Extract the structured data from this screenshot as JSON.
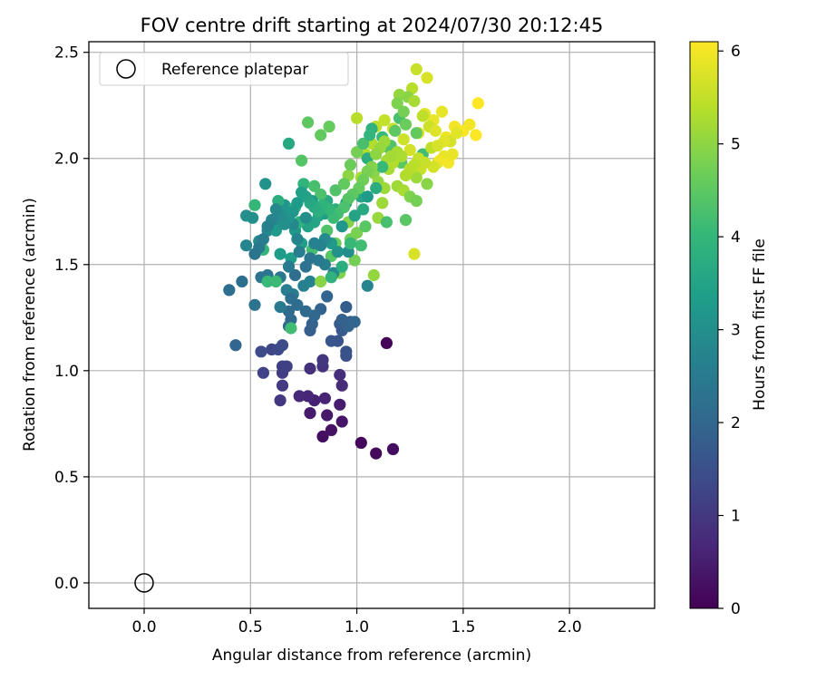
{
  "chart_data": {
    "type": "scatter",
    "title": "FOV centre drift starting at 2024/07/30 20:12:45",
    "xlabel": "Angular distance from reference (arcmin)",
    "ylabel": "Rotation from reference (arcmin)",
    "xlim": [
      -0.26,
      2.4
    ],
    "ylim": [
      -0.12,
      2.55
    ],
    "xticks": [
      0.0,
      0.5,
      1.0,
      1.5,
      2.0
    ],
    "xtick_labels": [
      "0.0",
      "0.5",
      "1.0",
      "1.5",
      "2.0"
    ],
    "yticks": [
      0.0,
      0.5,
      1.0,
      1.5,
      2.0,
      2.5
    ],
    "ytick_labels": [
      "0.0",
      "0.5",
      "1.0",
      "1.5",
      "2.0",
      "2.5"
    ],
    "grid": true,
    "legend": {
      "position": "top-left",
      "entries": [
        {
          "label": "Reference platepar",
          "marker": "open-circle",
          "x": 0.0,
          "y": 0.0
        }
      ]
    },
    "colorbar": {
      "label": "Hours from first FF file",
      "range": [
        0,
        6.1
      ],
      "ticks": [
        0,
        1,
        2,
        3,
        4,
        5,
        6
      ],
      "tick_labels": [
        "0",
        "1",
        "2",
        "3",
        "4",
        "5",
        "6"
      ],
      "colormap": "viridis",
      "colors": [
        "#440154",
        "#482878",
        "#3e4989",
        "#31688e",
        "#26828e",
        "#1f9e89",
        "#35b779",
        "#6ece58",
        "#b5de2b",
        "#fde725"
      ]
    },
    "points": [
      [
        1.14,
        1.13,
        0.05
      ],
      [
        1.02,
        0.66,
        0.1
      ],
      [
        1.09,
        0.61,
        0.15
      ],
      [
        1.17,
        0.63,
        0.2
      ],
      [
        0.84,
        0.69,
        0.25
      ],
      [
        0.88,
        0.72,
        0.3
      ],
      [
        0.93,
        0.76,
        0.35
      ],
      [
        0.86,
        0.79,
        0.4
      ],
      [
        0.78,
        0.8,
        0.45
      ],
      [
        0.92,
        0.84,
        0.5
      ],
      [
        0.8,
        0.86,
        0.55
      ],
      [
        0.85,
        0.87,
        0.6
      ],
      [
        0.77,
        0.88,
        0.65
      ],
      [
        0.73,
        0.88,
        0.7
      ],
      [
        0.93,
        0.93,
        0.75
      ],
      [
        0.92,
        0.98,
        0.8
      ],
      [
        0.78,
        1.01,
        0.85
      ],
      [
        0.84,
        1.02,
        0.9
      ],
      [
        0.84,
        1.05,
        0.95
      ],
      [
        0.64,
        0.86,
        1.0
      ],
      [
        0.65,
        0.93,
        1.05
      ],
      [
        0.65,
        0.99,
        1.1
      ],
      [
        0.65,
        1.02,
        1.15
      ],
      [
        0.67,
        1.02,
        1.2
      ],
      [
        0.56,
        0.99,
        1.25
      ],
      [
        0.6,
        1.1,
        1.3
      ],
      [
        0.63,
        1.1,
        1.35
      ],
      [
        0.55,
        1.09,
        1.4
      ],
      [
        0.65,
        1.12,
        1.45
      ],
      [
        0.95,
        1.07,
        1.5
      ],
      [
        0.95,
        1.09,
        1.55
      ],
      [
        0.91,
        1.14,
        1.6
      ],
      [
        0.88,
        1.14,
        1.65
      ],
      [
        0.93,
        1.19,
        1.7
      ],
      [
        0.92,
        1.22,
        1.75
      ],
      [
        0.97,
        1.23,
        1.8
      ],
      [
        0.78,
        1.19,
        1.85
      ],
      [
        0.79,
        1.22,
        1.9
      ],
      [
        0.83,
        1.29,
        1.95
      ],
      [
        0.43,
        1.12,
        2.0
      ],
      [
        0.68,
        1.21,
        2.05
      ],
      [
        0.69,
        1.24,
        2.1
      ],
      [
        0.68,
        1.28,
        2.15
      ],
      [
        0.4,
        1.38,
        2.2
      ],
      [
        0.46,
        1.42,
        2.25
      ],
      [
        0.52,
        1.31,
        2.3
      ],
      [
        0.55,
        1.44,
        2.35
      ],
      [
        0.58,
        1.45,
        2.4
      ],
      [
        0.64,
        1.44,
        2.45
      ],
      [
        0.64,
        1.3,
        2.5
      ],
      [
        0.7,
        1.36,
        2.55
      ],
      [
        0.67,
        1.38,
        2.6
      ],
      [
        0.75,
        1.4,
        2.65
      ],
      [
        0.78,
        1.42,
        2.7
      ],
      [
        1.05,
        1.4,
        2.75
      ],
      [
        0.48,
        1.59,
        2.8
      ],
      [
        0.54,
        1.61,
        2.85
      ],
      [
        0.58,
        1.66,
        2.9
      ],
      [
        0.63,
        1.7,
        2.95
      ],
      [
        0.48,
        1.73,
        3.0
      ],
      [
        0.51,
        1.72,
        3.05
      ],
      [
        0.57,
        1.88,
        3.1
      ],
      [
        0.67,
        1.74,
        3.15
      ],
      [
        0.66,
        1.78,
        3.2
      ],
      [
        0.71,
        1.66,
        3.25
      ],
      [
        0.62,
        1.66,
        3.3
      ],
      [
        0.64,
        1.55,
        3.35
      ],
      [
        0.69,
        1.53,
        3.4
      ],
      [
        0.74,
        1.6,
        3.45
      ],
      [
        0.77,
        1.68,
        3.5
      ],
      [
        0.8,
        1.7,
        3.55
      ],
      [
        0.82,
        1.73,
        3.6
      ],
      [
        0.68,
        2.07,
        3.65
      ],
      [
        0.86,
        1.8,
        3.7
      ],
      [
        0.9,
        1.76,
        3.75
      ],
      [
        0.63,
        1.8,
        3.8
      ],
      [
        0.71,
        1.77,
        3.85
      ],
      [
        0.73,
        1.7,
        3.9
      ],
      [
        0.75,
        1.88,
        3.95
      ],
      [
        0.56,
        1.57,
        4.0
      ],
      [
        0.52,
        1.78,
        4.05
      ],
      [
        0.58,
        1.42,
        4.1
      ],
      [
        0.62,
        1.42,
        4.15
      ],
      [
        0.69,
        1.2,
        4.2
      ],
      [
        0.79,
        1.57,
        4.25
      ],
      [
        0.8,
        1.87,
        4.3
      ],
      [
        0.83,
        1.83,
        4.35
      ],
      [
        0.86,
        1.66,
        4.4
      ],
      [
        0.74,
        1.99,
        4.45
      ],
      [
        0.88,
        1.54,
        4.5
      ],
      [
        0.77,
        2.17,
        4.55
      ],
      [
        0.83,
        2.11,
        4.6
      ],
      [
        0.87,
        2.15,
        4.65
      ],
      [
        0.9,
        1.6,
        4.7
      ],
      [
        0.97,
        1.62,
        4.75
      ],
      [
        0.99,
        1.52,
        4.8
      ],
      [
        1.0,
        1.65,
        4.85
      ],
      [
        0.92,
        1.46,
        4.9
      ],
      [
        0.96,
        1.7,
        4.95
      ],
      [
        0.83,
        1.42,
        5.0
      ],
      [
        0.96,
        1.92,
        5.05
      ],
      [
        1.08,
        1.45,
        5.1
      ],
      [
        1.1,
        1.72,
        5.15
      ],
      [
        1.12,
        1.79,
        5.2
      ],
      [
        1.14,
        1.99,
        5.25
      ],
      [
        1.02,
        1.91,
        5.3
      ],
      [
        1.04,
        2.02,
        5.35
      ],
      [
        1.07,
        2.07,
        5.4
      ],
      [
        1.0,
        2.19,
        5.45
      ],
      [
        1.09,
        2.15,
        5.5
      ],
      [
        1.13,
        2.18,
        5.55
      ],
      [
        1.17,
        2.14,
        5.6
      ],
      [
        1.22,
        2.09,
        5.65
      ],
      [
        1.25,
        2.04,
        5.7
      ],
      [
        1.27,
        1.55,
        5.75
      ],
      [
        1.29,
        2.12,
        5.8
      ],
      [
        1.32,
        2.21,
        5.85
      ],
      [
        1.36,
        2.18,
        5.9
      ],
      [
        1.42,
        2.1,
        5.95
      ],
      [
        1.46,
        2.15,
        6.0
      ],
      [
        1.5,
        2.13,
        6.05
      ],
      [
        1.56,
        2.11,
        6.08
      ],
      [
        1.57,
        2.26,
        6.1
      ],
      [
        1.31,
        2.02,
        4.2
      ],
      [
        1.28,
        2.12,
        4.6
      ],
      [
        1.2,
        2.19,
        4.3
      ],
      [
        1.23,
        2.16,
        4.7
      ],
      [
        1.21,
        1.98,
        4.5
      ],
      [
        1.26,
        1.94,
        5.4
      ],
      [
        1.3,
        1.95,
        5.6
      ],
      [
        1.28,
        1.91,
        5.2
      ],
      [
        1.33,
        1.88,
        5.0
      ],
      [
        1.35,
        2.05,
        5.5
      ],
      [
        1.38,
        1.98,
        5.8
      ],
      [
        1.41,
        2.01,
        5.9
      ],
      [
        1.44,
        2.08,
        5.7
      ],
      [
        1.4,
        2.22,
        5.9
      ],
      [
        1.47,
        2.12,
        5.85
      ],
      [
        1.53,
        2.16,
        6.0
      ],
      [
        1.28,
        2.42,
        5.6
      ],
      [
        1.33,
        2.38,
        5.75
      ],
      [
        1.2,
        2.3,
        5.1
      ],
      [
        1.26,
        2.33,
        5.45
      ],
      [
        1.19,
        2.26,
        4.9
      ],
      [
        1.15,
        2.05,
        4.4
      ],
      [
        1.12,
        2.1,
        4.1
      ],
      [
        1.07,
        2.14,
        3.9
      ],
      [
        1.05,
        2.0,
        3.8
      ],
      [
        1.02,
        1.82,
        3.6
      ],
      [
        1.03,
        1.76,
        3.7
      ],
      [
        0.99,
        1.73,
        3.5
      ],
      [
        0.95,
        1.79,
        3.4
      ],
      [
        0.93,
        1.68,
        3.2
      ],
      [
        0.96,
        1.56,
        3.0
      ],
      [
        0.91,
        1.56,
        3.1
      ],
      [
        0.88,
        1.6,
        3.3
      ],
      [
        0.85,
        1.62,
        2.9
      ],
      [
        0.83,
        1.59,
        2.7
      ],
      [
        0.85,
        1.5,
        2.6
      ],
      [
        0.89,
        1.46,
        2.8
      ],
      [
        0.82,
        1.52,
        2.5
      ],
      [
        0.78,
        1.53,
        2.4
      ],
      [
        0.76,
        1.49,
        2.3
      ],
      [
        0.71,
        1.45,
        2.2
      ],
      [
        0.68,
        1.49,
        2.5
      ],
      [
        0.73,
        1.56,
        2.6
      ],
      [
        0.8,
        1.6,
        2.7
      ],
      [
        0.72,
        1.62,
        2.75
      ],
      [
        0.7,
        1.69,
        2.85
      ],
      [
        0.76,
        1.72,
        3.0
      ],
      [
        0.79,
        1.8,
        3.3
      ],
      [
        0.85,
        1.74,
        3.45
      ],
      [
        0.9,
        1.85,
        4.4
      ],
      [
        0.94,
        1.88,
        4.6
      ],
      [
        0.97,
        1.97,
        4.7
      ],
      [
        1.0,
        2.03,
        4.8
      ],
      [
        1.03,
        2.07,
        4.3
      ],
      [
        1.06,
        2.11,
        4.0
      ],
      [
        1.08,
        1.93,
        5.0
      ],
      [
        1.1,
        1.89,
        5.1
      ],
      [
        1.13,
        1.86,
        5.2
      ],
      [
        1.15,
        1.95,
        5.3
      ],
      [
        1.17,
        1.98,
        5.4
      ],
      [
        1.19,
        1.87,
        5.2
      ],
      [
        1.22,
        1.85,
        5.3
      ],
      [
        1.25,
        1.82,
        4.9
      ],
      [
        1.28,
        1.8,
        4.8
      ],
      [
        1.23,
        1.71,
        4.5
      ],
      [
        1.14,
        1.7,
        4.3
      ],
      [
        1.04,
        1.68,
        4.5
      ],
      [
        1.02,
        1.59,
        4.2
      ],
      [
        0.97,
        1.6,
        4.1
      ],
      [
        0.93,
        1.49,
        3.8
      ],
      [
        0.88,
        1.44,
        3.9
      ],
      [
        0.86,
        1.35,
        2.0
      ],
      [
        0.95,
        1.3,
        1.8
      ],
      [
        0.93,
        1.24,
        1.9
      ],
      [
        0.96,
        1.21,
        1.95
      ],
      [
        0.99,
        1.23,
        2.0
      ],
      [
        0.8,
        1.26,
        2.05
      ],
      [
        0.76,
        1.28,
        2.1
      ],
      [
        0.72,
        1.31,
        2.15
      ],
      [
        0.69,
        1.34,
        2.2
      ],
      [
        1.05,
        1.82,
        3.35
      ],
      [
        1.09,
        1.86,
        3.75
      ],
      [
        1.12,
        1.96,
        4.1
      ],
      [
        1.16,
        2.06,
        4.4
      ],
      [
        1.18,
        2.13,
        4.55
      ],
      [
        1.22,
        2.22,
        4.8
      ],
      [
        1.24,
        2.29,
        5.0
      ],
      [
        1.27,
        2.27,
        5.3
      ],
      [
        1.31,
        2.2,
        5.5
      ],
      [
        1.34,
        2.15,
        5.65
      ],
      [
        1.37,
        2.13,
        5.8
      ],
      [
        1.41,
        2.08,
        5.85
      ],
      [
        1.39,
        1.99,
        5.95
      ],
      [
        1.43,
        1.98,
        6.0
      ],
      [
        1.45,
        2.02,
        5.9
      ],
      [
        1.38,
        2.06,
        5.75
      ],
      [
        1.36,
        1.96,
        5.7
      ],
      [
        1.32,
        1.98,
        5.6
      ],
      [
        1.29,
        2.0,
        5.55
      ],
      [
        1.27,
        1.97,
        5.5
      ],
      [
        1.25,
        1.95,
        5.45
      ],
      [
        1.23,
        1.92,
        5.4
      ],
      [
        1.21,
        2.01,
        5.35
      ],
      [
        1.19,
        2.03,
        5.3
      ],
      [
        1.16,
        2.01,
        5.25
      ],
      [
        1.13,
        2.08,
        5.2
      ],
      [
        1.11,
        2.05,
        5.15
      ],
      [
        1.09,
        2.02,
        5.05
      ],
      [
        1.07,
        1.96,
        4.95
      ],
      [
        1.05,
        1.94,
        4.85
      ],
      [
        1.03,
        1.9,
        4.75
      ],
      [
        1.01,
        1.86,
        4.65
      ],
      [
        0.98,
        1.83,
        4.55
      ],
      [
        0.96,
        1.81,
        4.45
      ],
      [
        0.94,
        1.77,
        4.35
      ],
      [
        0.91,
        1.74,
        4.25
      ],
      [
        0.89,
        1.72,
        4.15
      ],
      [
        0.87,
        1.76,
        4.05
      ],
      [
        0.84,
        1.78,
        3.95
      ],
      [
        0.82,
        1.75,
        3.85
      ],
      [
        0.8,
        1.77,
        3.75
      ],
      [
        0.78,
        1.79,
        3.65
      ],
      [
        0.76,
        1.82,
        3.55
      ],
      [
        0.74,
        1.84,
        3.45
      ],
      [
        0.72,
        1.79,
        3.35
      ],
      [
        0.7,
        1.75,
        3.25
      ],
      [
        0.68,
        1.72,
        3.15
      ],
      [
        0.66,
        1.69,
        3.05
      ],
      [
        0.64,
        1.73,
        2.95
      ],
      [
        0.62,
        1.76,
        2.85
      ],
      [
        0.6,
        1.71,
        2.75
      ],
      [
        0.58,
        1.68,
        2.65
      ],
      [
        0.56,
        1.62,
        2.55
      ],
      [
        0.54,
        1.58,
        2.45
      ],
      [
        0.52,
        1.55,
        2.35
      ]
    ]
  }
}
